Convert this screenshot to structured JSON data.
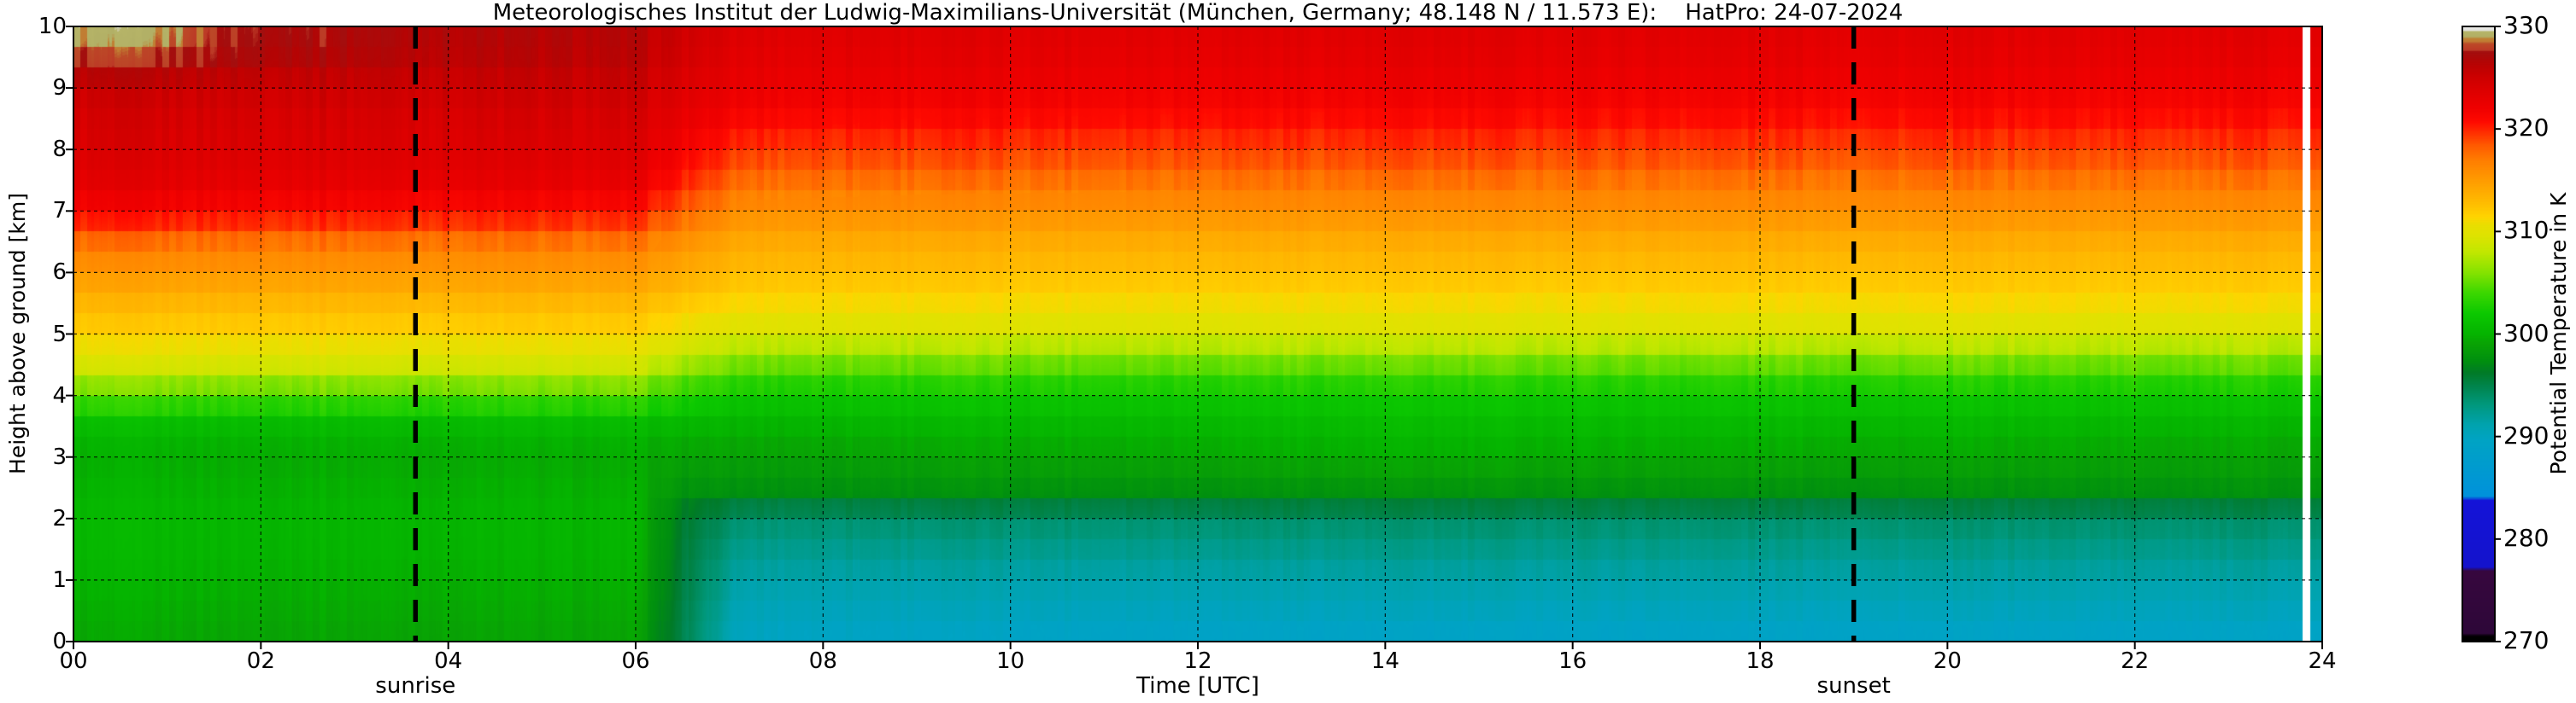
{
  "title": "Meteorologisches Institut der Ludwig-Maximilians-Universität (München, Germany; 48.148 N / 11.573 E):    HatPro: 24-07-2024",
  "axes": {
    "x": {
      "label": "Time [UTC]",
      "tick_labels": [
        "00",
        "02",
        "04",
        "06",
        "08",
        "10",
        "12",
        "14",
        "16",
        "18",
        "20",
        "22",
        "24"
      ],
      "tick_values": [
        0,
        2,
        4,
        6,
        8,
        10,
        12,
        14,
        16,
        18,
        20,
        22,
        24
      ],
      "range": [
        0,
        24
      ]
    },
    "y": {
      "label": "Height above ground [km]",
      "tick_labels": [
        "0",
        "1",
        "2",
        "3",
        "4",
        "5",
        "6",
        "7",
        "8",
        "9",
        "10"
      ],
      "tick_values": [
        0,
        1,
        2,
        3,
        4,
        5,
        6,
        7,
        8,
        9,
        10
      ],
      "range": [
        0,
        10
      ]
    }
  },
  "colorbar": {
    "label": "Potential Temperature in K",
    "tick_labels": [
      "330",
      "320",
      "310",
      "300",
      "290",
      "280",
      "270"
    ],
    "tick_values": [
      330,
      320,
      310,
      300,
      290,
      280,
      270
    ],
    "range": [
      270,
      330
    ]
  },
  "annotations": {
    "sunrise": {
      "label": "sunrise",
      "time_utc": 3.65
    },
    "sunset": {
      "label": "sunset",
      "time_utc": 19.0
    }
  },
  "chart_data": {
    "type": "heatmap",
    "x_unit": "hours UTC",
    "x_range": [
      0,
      24
    ],
    "y_unit": "km above ground",
    "y_range": [
      0,
      10
    ],
    "value_name": "potential temperature",
    "value_unit": "K",
    "value_range": [
      270,
      330
    ],
    "grid": {
      "x_step_h": 2,
      "y_step_km": 1,
      "style": "dashed"
    },
    "data_gap_utc": [
      23.79,
      23.87
    ],
    "striation_amplitude_k": 0.5,
    "height_grid_km": [
      0,
      0.5,
      1,
      1.5,
      2,
      2.5,
      3,
      3.5,
      4,
      4.5,
      5,
      5.5,
      6,
      6.5,
      7,
      7.5,
      8,
      8.5,
      9,
      9.5,
      10
    ],
    "time_profiles": [
      {
        "t": 0.0,
        "theta": [
          299.2,
          299.6,
          300.0,
          300.3,
          300.4,
          300.0,
          299.6,
          300.8,
          304.6,
          309.2,
          311.6,
          313.2,
          315.2,
          317.6,
          321.3,
          323.2,
          324.0,
          324.4,
          325.2,
          327.9,
          329.6
        ]
      },
      {
        "t": 1.1,
        "theta": [
          299.2,
          299.6,
          300.0,
          300.3,
          300.4,
          300.0,
          299.6,
          300.8,
          304.6,
          309.2,
          311.6,
          313.2,
          315.2,
          317.6,
          321.3,
          323.2,
          324.0,
          324.4,
          325.2,
          327.8,
          329.2
        ]
      },
      {
        "t": 1.6,
        "theta": [
          299.1,
          299.5,
          299.9,
          300.2,
          300.3,
          299.9,
          299.5,
          300.7,
          304.5,
          309.1,
          311.6,
          313.2,
          315.2,
          317.6,
          321.2,
          323.1,
          324.0,
          324.4,
          325.2,
          327.2,
          327.9
        ]
      },
      {
        "t": 4.0,
        "theta": [
          299.0,
          299.4,
          299.8,
          300.1,
          300.2,
          299.8,
          299.4,
          300.6,
          304.4,
          309.0,
          311.5,
          313.1,
          315.1,
          317.5,
          321.0,
          323.0,
          323.9,
          324.3,
          325.1,
          326.3,
          326.7
        ]
      },
      {
        "t": 6.0,
        "theta": [
          298.9,
          299.3,
          299.7,
          300.0,
          300.1,
          299.7,
          299.3,
          300.5,
          304.3,
          308.9,
          311.4,
          313.0,
          315.0,
          317.3,
          320.6,
          322.7,
          323.7,
          324.2,
          325.0,
          326.0,
          326.3
        ]
      },
      {
        "t": 6.5,
        "theta": [
          294.9,
          295.1,
          295.4,
          295.7,
          296.0,
          297.8,
          298.9,
          300.2,
          303.0,
          307.0,
          310.3,
          312.1,
          313.9,
          315.7,
          318.2,
          320.2,
          321.6,
          322.7,
          323.7,
          324.6,
          325.0
        ]
      },
      {
        "t": 7.1,
        "theta": [
          289.8,
          290.5,
          291.4,
          292.5,
          293.7,
          297.7,
          298.8,
          300.0,
          301.8,
          305.4,
          309.3,
          311.2,
          312.8,
          314.1,
          315.9,
          317.7,
          319.5,
          321.2,
          322.5,
          323.2,
          323.8
        ]
      },
      {
        "t": 9.0,
        "theta": [
          289.3,
          290.3,
          291.3,
          292.5,
          293.8,
          297.8,
          299.0,
          300.2,
          301.9,
          305.3,
          309.2,
          311.1,
          312.7,
          314.0,
          315.8,
          317.6,
          319.4,
          321.0,
          322.3,
          323.1,
          323.6
        ]
      },
      {
        "t": 14.0,
        "theta": [
          288.9,
          290.2,
          291.3,
          292.6,
          293.9,
          298.0,
          299.6,
          300.7,
          302.0,
          305.2,
          309.2,
          311.0,
          312.6,
          313.9,
          315.7,
          317.5,
          319.3,
          320.9,
          322.2,
          323.0,
          323.5
        ]
      },
      {
        "t": 20.0,
        "theta": [
          288.9,
          290.2,
          291.4,
          292.6,
          293.9,
          297.8,
          299.2,
          300.3,
          301.8,
          305.2,
          309.2,
          311.1,
          312.6,
          313.9,
          315.7,
          317.4,
          319.2,
          320.8,
          322.1,
          322.9,
          323.4
        ]
      },
      {
        "t": 24.0,
        "theta": [
          289.0,
          290.3,
          291.4,
          292.7,
          294.0,
          297.8,
          299.0,
          300.1,
          301.7,
          305.2,
          309.2,
          311.1,
          312.6,
          313.9,
          315.7,
          317.4,
          319.2,
          320.8,
          322.1,
          322.9,
          323.4
        ]
      }
    ],
    "colormap_stops": [
      [
        270.0,
        "#000000"
      ],
      [
        270.5,
        "#000000"
      ],
      [
        270.8,
        "#2e0739"
      ],
      [
        276.9,
        "#37083f"
      ],
      [
        277.25,
        "#1413cd"
      ],
      [
        283.75,
        "#1414d8"
      ],
      [
        284.15,
        "#0092dc"
      ],
      [
        289.7,
        "#00a4c4"
      ],
      [
        291.2,
        "#00a3ae"
      ],
      [
        293.2,
        "#00987b"
      ],
      [
        294.9,
        "#00854d"
      ],
      [
        296.2,
        "#007b28"
      ],
      [
        297.3,
        "#008f10"
      ],
      [
        299.0,
        "#09a305"
      ],
      [
        300.0,
        "#05b400"
      ],
      [
        302.0,
        "#0cc900"
      ],
      [
        304.0,
        "#3cd800"
      ],
      [
        306.0,
        "#86e300"
      ],
      [
        308.0,
        "#c2e800"
      ],
      [
        309.6,
        "#dfe300"
      ],
      [
        310.6,
        "#eadf00"
      ],
      [
        311.4,
        "#ffd500"
      ],
      [
        313.0,
        "#ffb900"
      ],
      [
        315.0,
        "#ff9c00"
      ],
      [
        317.0,
        "#ff7d00"
      ],
      [
        318.4,
        "#ff5a00"
      ],
      [
        319.6,
        "#ff3000"
      ],
      [
        320.7,
        "#ff0a00"
      ],
      [
        322.2,
        "#ee0000"
      ],
      [
        323.8,
        "#dd0000"
      ],
      [
        325.2,
        "#cb0000"
      ],
      [
        326.4,
        "#b60404"
      ],
      [
        327.55,
        "#a30f0f"
      ],
      [
        327.7,
        "#bc3a26"
      ],
      [
        328.35,
        "#bc4a28"
      ],
      [
        328.5,
        "#c27d33"
      ],
      [
        328.85,
        "#c08034"
      ],
      [
        328.98,
        "#b2b066"
      ],
      [
        329.5,
        "#b6b468"
      ],
      [
        329.62,
        "#e3e3df"
      ],
      [
        330.0,
        "#eeeeea"
      ]
    ]
  }
}
